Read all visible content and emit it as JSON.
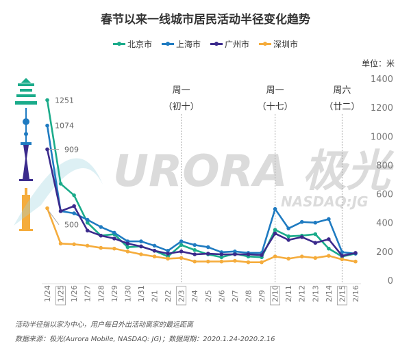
{
  "title": "春节以来一线城市居民活动半径变化趋势",
  "unit": "单位：米",
  "watermark": {
    "brand": "URORA 极光",
    "ticker": "NASDAQ:JG"
  },
  "notes": [
    "活动半径指以家为中心，用户每日外出活动离家的最远距离",
    "数据来源：极光(Aurora Mobile, NASDAQ: JG)；数据周期：2020.1.24-2020.2.16"
  ],
  "chart_data": {
    "type": "line",
    "title": "春节以来一线城市居民活动半径变化趋势",
    "ylabel": "单位：米",
    "ylim": [
      0,
      1400
    ],
    "yticks": [
      0,
      200,
      400,
      600,
      800,
      1000,
      1200,
      1400
    ],
    "x": [
      "1/24",
      "1/25",
      "1/26",
      "1/27",
      "1/28",
      "1/29",
      "1/30",
      "1/31",
      "2/1",
      "2/2",
      "2/3",
      "2/4",
      "2/5",
      "2/6",
      "2/7",
      "2/8",
      "2/9",
      "2/10",
      "2/11",
      "2/12",
      "2/13",
      "2/14",
      "2/15",
      "2/16"
    ],
    "boxed_ticks": [
      "1/25",
      "2/3",
      "2/10",
      "2/15"
    ],
    "legend_position": "top-center",
    "series": [
      {
        "name": "北京市",
        "color": "#1aab8a",
        "values": [
          1251,
          670,
          590,
          400,
          310,
          320,
          230,
          235,
          205,
          165,
          245,
          210,
          180,
          160,
          185,
          165,
          160,
          350,
          305,
          310,
          320,
          220,
          165,
          185
        ]
      },
      {
        "name": "上海市",
        "color": "#1f7bc1",
        "values": [
          1074,
          480,
          465,
          420,
          370,
          330,
          270,
          270,
          240,
          205,
          270,
          245,
          230,
          195,
          200,
          190,
          190,
          495,
          360,
          405,
          400,
          425,
          195,
          185
        ]
      },
      {
        "name": "广州市",
        "color": "#3b2a8c",
        "values": [
          909,
          480,
          515,
          345,
          310,
          290,
          255,
          235,
          205,
          185,
          200,
          180,
          185,
          180,
          180,
          180,
          175,
          325,
          280,
          300,
          260,
          285,
          170,
          190
        ]
      },
      {
        "name": "深圳市",
        "color": "#f5ac3c",
        "values": [
          500,
          255,
          250,
          240,
          225,
          220,
          200,
          180,
          165,
          150,
          155,
          130,
          130,
          130,
          135,
          125,
          125,
          165,
          150,
          165,
          155,
          170,
          145,
          130
        ]
      }
    ],
    "data_labels": [
      {
        "x": "1/24",
        "text": "1251"
      },
      {
        "x": "1/24",
        "text": "1074"
      },
      {
        "x": "1/24",
        "text": "909"
      },
      {
        "x": "1/24",
        "text": "500"
      }
    ],
    "annotations": [
      {
        "x": "2/3",
        "line1": "周一",
        "line2": "（初十）"
      },
      {
        "x": "2/10",
        "line1": "周一",
        "line2": "（十七）"
      },
      {
        "x": "2/15",
        "line1": "周六",
        "line2": "（廿二）"
      }
    ]
  }
}
